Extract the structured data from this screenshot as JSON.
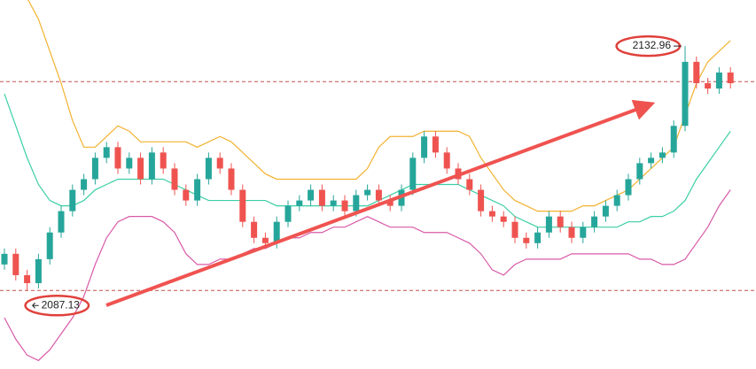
{
  "chart_data": {
    "type": "candlestick",
    "ylim": [
      2072.4,
      2141.6
    ],
    "up_color": "#26a69a",
    "down_color": "#ef5350",
    "open": [
      2092,
      2094,
      2090,
      2088.5,
      2093,
      2098,
      2102,
      2106,
      2108,
      2112,
      2114,
      2110,
      2112,
      2108,
      2113,
      2110,
      2106,
      2104,
      2108,
      2112,
      2110,
      2106,
      2100,
      2097,
      2096,
      2100,
      2103,
      2104,
      2106,
      2103,
      2104,
      2102,
      2105,
      2106,
      2104,
      2103,
      2106,
      2112,
      2116,
      2113,
      2110,
      2108,
      2106,
      2102,
      2101,
      2100,
      2097,
      2096,
      2098,
      2101,
      2099,
      2097,
      2099,
      2101,
      2103,
      2105,
      2108,
      2111,
      2112,
      2113,
      2118,
      2130,
      2126,
      2125,
      2128
    ],
    "high": [
      2095,
      2095,
      2091,
      2094,
      2099,
      2103,
      2107,
      2109,
      2113,
      2115,
      2115,
      2113,
      2113,
      2114,
      2114,
      2111,
      2107,
      2109,
      2113,
      2113,
      2111,
      2107,
      2101,
      2098,
      2101,
      2104,
      2105,
      2107,
      2107,
      2105,
      2105,
      2106,
      2107,
      2107,
      2105,
      2107,
      2113,
      2117,
      2117,
      2114,
      2111,
      2109,
      2107,
      2103,
      2102,
      2101,
      2098,
      2099,
      2102,
      2102,
      2100,
      2100,
      2102,
      2104,
      2106,
      2109,
      2112,
      2113,
      2114,
      2119,
      2132.96,
      2131,
      2127,
      2129,
      2129
    ],
    "low": [
      2091,
      2089,
      2087.13,
      2087.5,
      2092,
      2097,
      2101,
      2105,
      2107,
      2111,
      2109,
      2109,
      2107,
      2107,
      2109,
      2105,
      2103,
      2103,
      2107,
      2109,
      2105,
      2099,
      2096,
      2095,
      2095,
      2099,
      2102,
      2103,
      2102,
      2102,
      2101,
      2101,
      2104,
      2103,
      2102,
      2102,
      2105,
      2111,
      2112,
      2109,
      2107,
      2105,
      2101,
      2100,
      2099,
      2096,
      2095,
      2095,
      2097,
      2098,
      2096,
      2096,
      2098,
      2100,
      2102,
      2104,
      2107,
      2110,
      2111,
      2112,
      2117,
      2125,
      2124,
      2124,
      2125
    ],
    "close": [
      2094,
      2090,
      2088.5,
      2093,
      2098,
      2102,
      2106,
      2108,
      2112,
      2114,
      2110,
      2112,
      2108,
      2113,
      2110,
      2106,
      2104,
      2108,
      2112,
      2110,
      2106,
      2100,
      2097,
      2096,
      2100,
      2103,
      2104,
      2106,
      2103,
      2104,
      2102,
      2105,
      2106,
      2104,
      2103,
      2106,
      2112,
      2116,
      2113,
      2110,
      2108,
      2106,
      2102,
      2101,
      2100,
      2097,
      2096,
      2098,
      2101,
      2099,
      2097,
      2099,
      2101,
      2103,
      2105,
      2108,
      2111,
      2112,
      2113,
      2118,
      2130,
      2126,
      2125,
      2128,
      2126
    ],
    "bands": [
      {
        "color": "#f2b230",
        "values": [
          2150,
          2146,
          2142,
          2138,
          2132,
          2126,
          2119,
          2114,
          2114,
          2116,
          2118,
          2117,
          2115,
          2115,
          2115,
          2115,
          2115,
          2114,
          2115,
          2116,
          2115,
          2113,
          2111,
          2109,
          2108,
          2108,
          2108,
          2108,
          2108,
          2108,
          2108,
          2108,
          2110,
          2114,
          2116,
          2116,
          2116,
          2117,
          2117,
          2117,
          2117,
          2116,
          2112,
          2109,
          2106,
          2104,
          2103,
          2102,
          2102,
          2102,
          2102,
          2103,
          2103,
          2104,
          2105,
          2106,
          2108,
          2110,
          2112,
          2114,
          2120,
          2126,
          2130,
          2132,
          2134
        ]
      },
      {
        "color": "#3ccfa6",
        "values": [
          2124,
          2118,
          2112,
          2107,
          2104,
          2103,
          2103,
          2104,
          2106,
          2107,
          2108,
          2108,
          2108,
          2108,
          2108,
          2107,
          2106,
          2105,
          2104,
          2104,
          2104,
          2104,
          2104,
          2104,
          2103,
          2103,
          2103,
          2103,
          2103,
          2103,
          2103,
          2103,
          2103,
          2104,
          2105,
          2106,
          2107,
          2107,
          2107,
          2107,
          2107,
          2106,
          2105,
          2104,
          2103,
          2101,
          2100,
          2099,
          2099,
          2099,
          2099,
          2099,
          2099,
          2099,
          2099,
          2100,
          2100,
          2101,
          2101,
          2102,
          2104,
          2108,
          2111,
          2114,
          2117
        ]
      },
      {
        "color": "#d95aa8",
        "values": [
          2082,
          2078,
          2075,
          2074,
          2076,
          2079,
          2082,
          2086,
          2092,
          2097,
          2100,
          2101,
          2101,
          2101,
          2100,
          2098,
          2094,
          2092,
          2092,
          2093,
          2093,
          2094,
          2095,
          2095,
          2096,
          2097,
          2097,
          2098,
          2098,
          2099,
          2099,
          2100,
          2101,
          2100,
          2099,
          2099,
          2099,
          2098,
          2098,
          2098,
          2097,
          2096,
          2094,
          2091,
          2090,
          2092,
          2093,
          2093,
          2093,
          2093,
          2094,
          2094,
          2094,
          2094,
          2094,
          2094,
          2093,
          2093,
          2092,
          2092,
          2093,
          2096,
          2099,
          2103,
          2106
        ]
      }
    ],
    "reference_lines": [
      2126.3,
      2087.13
    ],
    "reference_color": "#c0504d",
    "annotations": [
      {
        "text": "2132.96",
        "value": 2132.96,
        "index": 60
      },
      {
        "text": "2087.13",
        "value": 2087.13,
        "index": 2
      }
    ]
  }
}
